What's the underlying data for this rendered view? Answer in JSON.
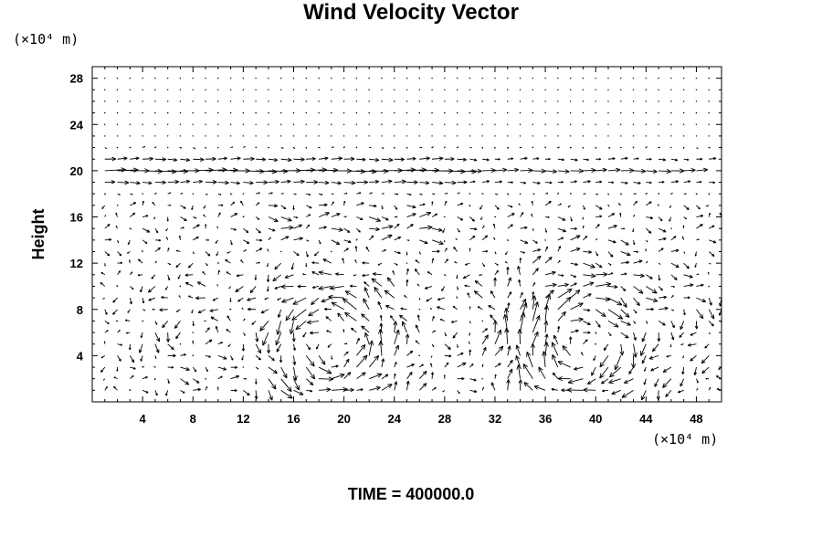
{
  "chart_data": {
    "type": "vector field",
    "title": "Wind Velocity Vector",
    "ylabel": "Height",
    "xunit": "(×10⁴ m)",
    "yunit": "(×10⁴ m)",
    "footer": "TIME = 400000.0",
    "xlim": [
      0,
      50
    ],
    "ylim": [
      0,
      29
    ],
    "x_ticks": [
      "4",
      "8",
      "12",
      "16",
      "20",
      "24",
      "28",
      "32",
      "36",
      "40",
      "44",
      "48"
    ],
    "y_ticks": [
      "4",
      "8",
      "12",
      "16",
      "20",
      "24",
      "28"
    ],
    "grid": false,
    "colors": {
      "axes": "#000000",
      "vectors": "#000000",
      "background": "#ffffff"
    }
  }
}
